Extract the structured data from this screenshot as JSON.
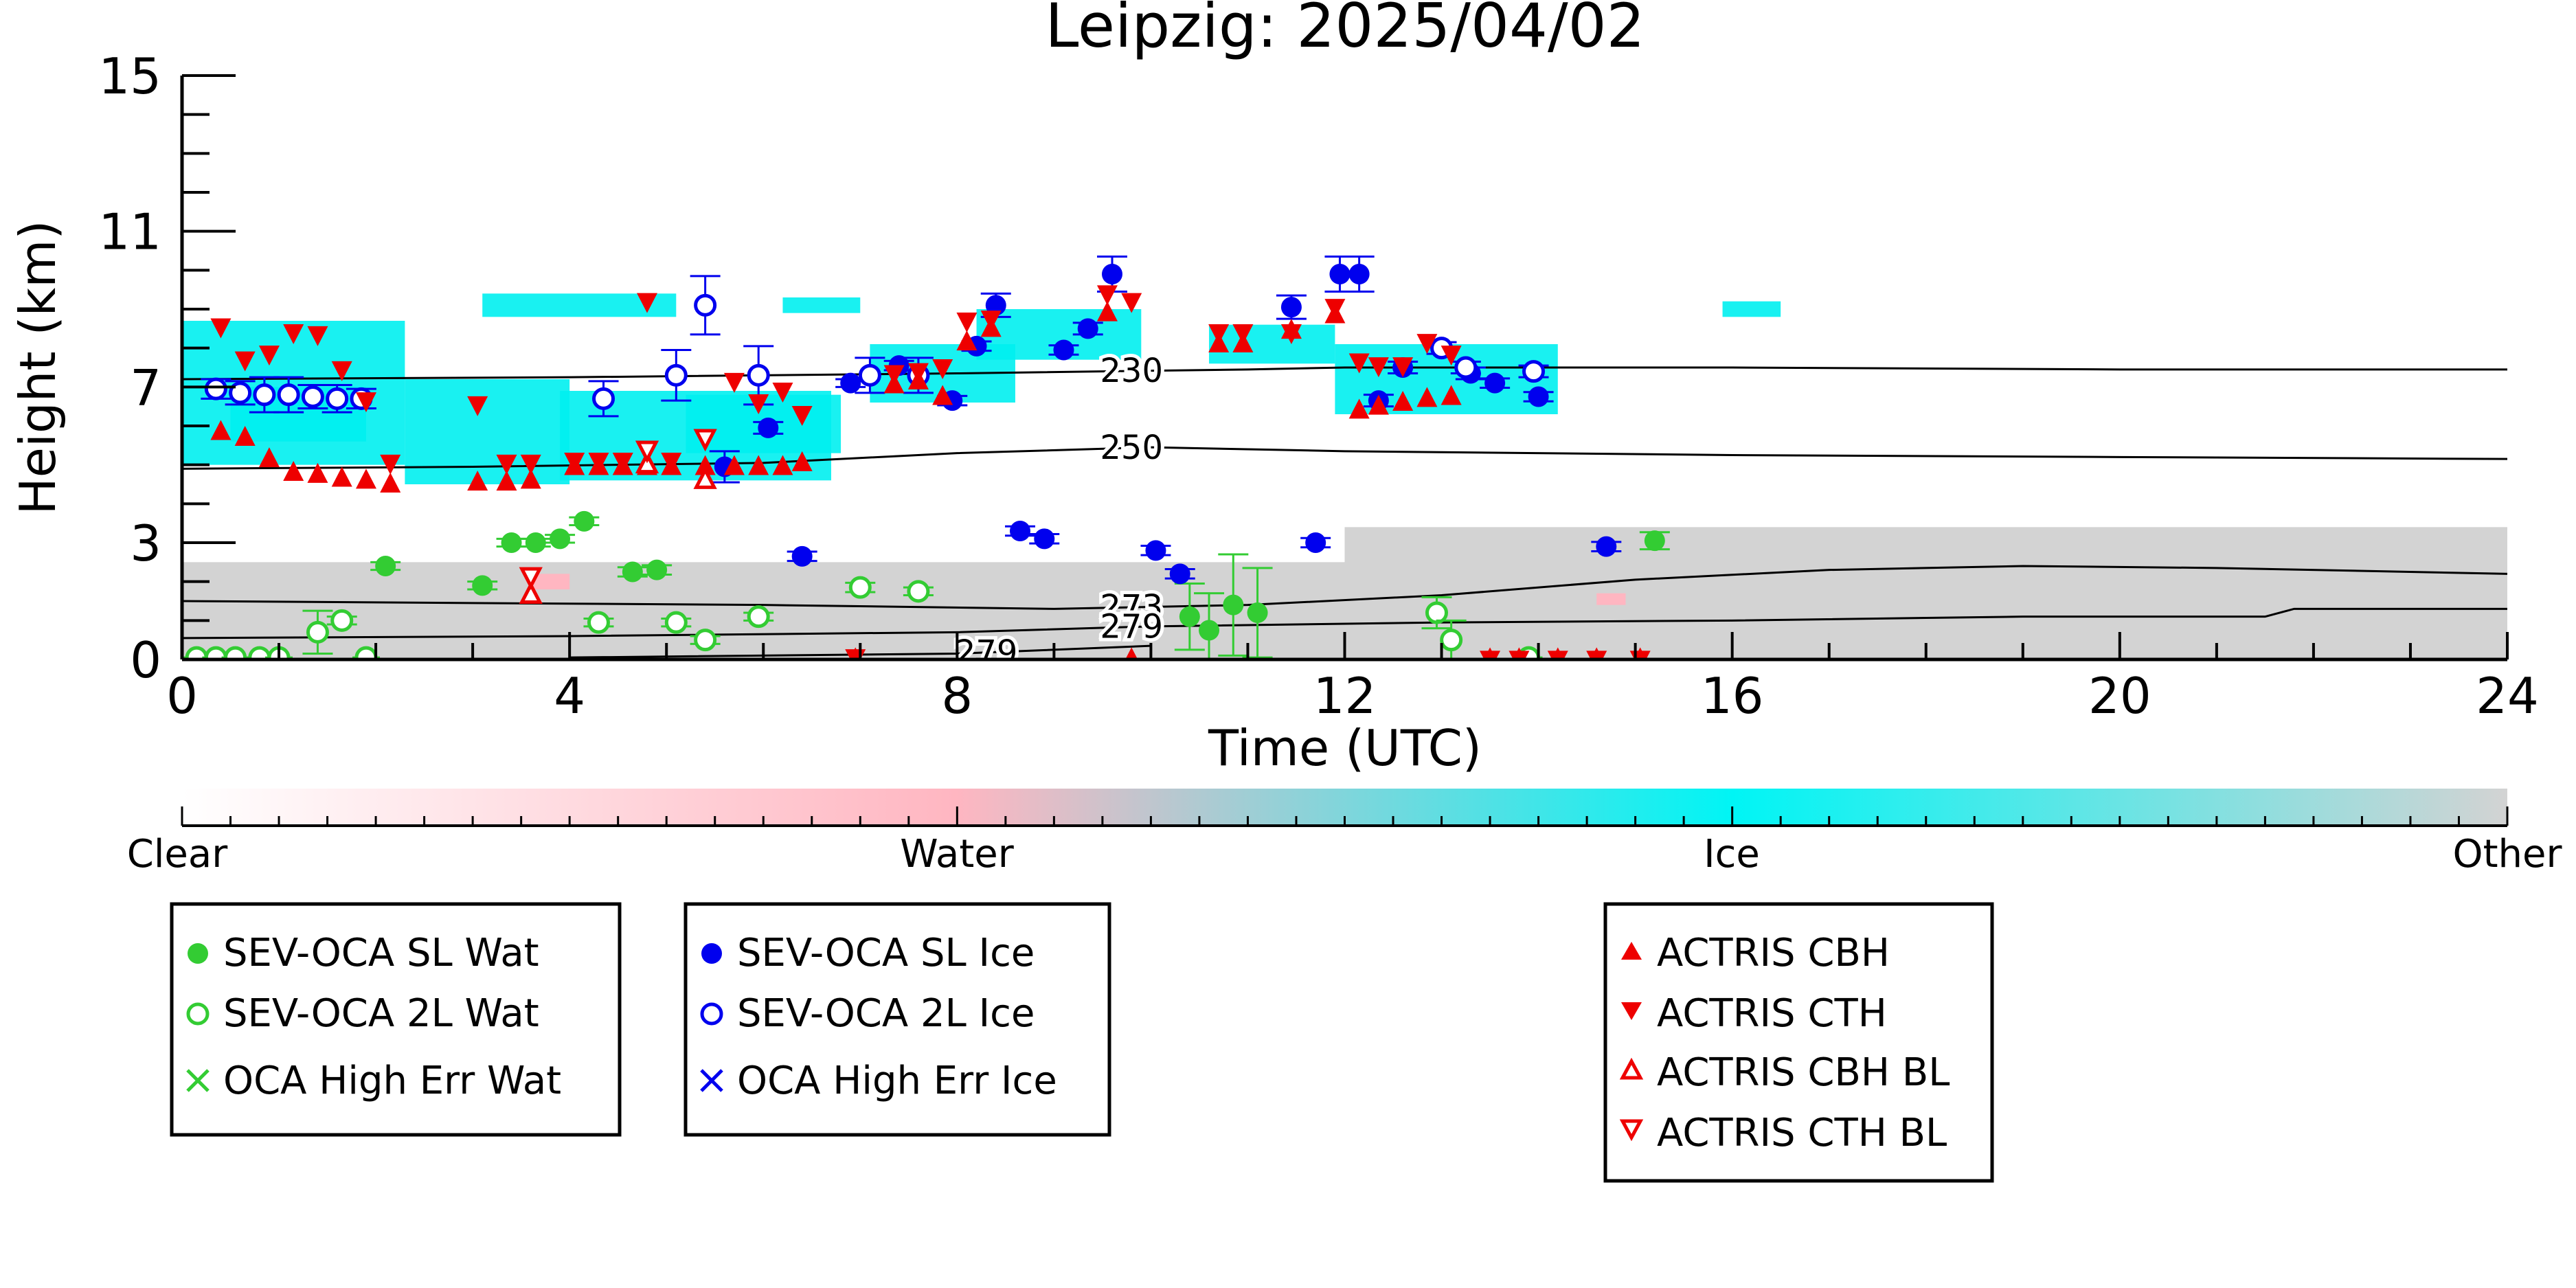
{
  "chart_data": {
    "type": "scatter",
    "title": "Leipzig: 2025/04/02",
    "xlabel": "Time (UTC)",
    "ylabel": "Height (km)",
    "xlim": [
      0,
      24
    ],
    "ylim": [
      0,
      15
    ],
    "xticks": [
      0,
      4,
      8,
      12,
      16,
      20,
      24
    ],
    "yticks": [
      0,
      3,
      7,
      11,
      15
    ],
    "grid": false,
    "colors": {
      "sl_wat": "#33cc33",
      "twol_wat": "#33cc33",
      "sl_ice": "#0000ee",
      "twol_ice": "#0000ee",
      "actris": "#ee0000",
      "ice_mask": "#00f0f0",
      "water_mask": "#ffb6c1",
      "other_mask": "#d3d3d3"
    },
    "colorbar": {
      "labels": [
        "Clear",
        "Water",
        "Ice",
        "Other"
      ],
      "stops": [
        "#ffffff",
        "#ffb6c1",
        "#00f5f5",
        "#d3d3d3"
      ]
    },
    "contours": [
      {
        "label": "230",
        "points": [
          [
            0,
            7.2
          ],
          [
            4,
            7.25
          ],
          [
            8,
            7.35
          ],
          [
            11,
            7.45
          ],
          [
            12,
            7.5
          ],
          [
            16,
            7.5
          ],
          [
            20,
            7.45
          ],
          [
            24,
            7.45
          ]
        ]
      },
      {
        "label": "250",
        "points": [
          [
            0,
            4.9
          ],
          [
            3,
            4.95
          ],
          [
            6,
            5.05
          ],
          [
            8,
            5.3
          ],
          [
            10,
            5.45
          ],
          [
            12,
            5.35
          ],
          [
            16,
            5.25
          ],
          [
            20,
            5.2
          ],
          [
            24,
            5.15
          ]
        ]
      },
      {
        "label": "273",
        "points": [
          [
            0,
            1.5
          ],
          [
            3,
            1.45
          ],
          [
            6,
            1.4
          ],
          [
            9,
            1.3
          ],
          [
            11,
            1.4
          ],
          [
            13,
            1.65
          ],
          [
            15,
            2.05
          ],
          [
            17,
            2.3
          ],
          [
            19,
            2.4
          ],
          [
            21,
            2.35
          ],
          [
            24,
            2.2
          ]
        ]
      },
      {
        "label": "279",
        "points": [
          [
            0,
            0.55
          ],
          [
            4,
            0.6
          ],
          [
            8,
            0.7
          ],
          [
            10,
            0.85
          ],
          [
            13,
            0.95
          ],
          [
            16,
            1.0
          ],
          [
            19,
            1.1
          ],
          [
            21.5,
            1.1
          ],
          [
            21.8,
            1.3
          ],
          [
            24,
            1.3
          ]
        ]
      },
      {
        "label": "279",
        "points": [
          [
            4,
            0.05
          ],
          [
            8,
            0.15
          ],
          [
            10,
            0.35
          ]
        ]
      }
    ],
    "masks": {
      "ice": [
        {
          "x": [
            0,
            2.3
          ],
          "y": [
            5.0,
            8.7
          ]
        },
        {
          "x": [
            0.5,
            1.9
          ],
          "y": [
            5.6,
            7.0
          ]
        },
        {
          "x": [
            2.3,
            4.0
          ],
          "y": [
            4.5,
            7.2
          ]
        },
        {
          "x": [
            3.9,
            6.7
          ],
          "y": [
            4.6,
            6.9
          ]
        },
        {
          "x": [
            5.2,
            6.8
          ],
          "y": [
            5.3,
            6.8
          ]
        },
        {
          "x": [
            7.1,
            8.6
          ],
          "y": [
            6.6,
            8.1
          ]
        },
        {
          "x": [
            8.2,
            9.9
          ],
          "y": [
            7.7,
            9.0
          ]
        },
        {
          "x": [
            10.6,
            11.9
          ],
          "y": [
            7.6,
            8.6
          ]
        },
        {
          "x": [
            11.9,
            14.2
          ],
          "y": [
            6.3,
            8.1
          ]
        },
        {
          "x": [
            3.1,
            5.1
          ],
          "y": [
            8.8,
            9.4
          ]
        },
        {
          "x": [
            6.2,
            7.0
          ],
          "y": [
            8.9,
            9.3
          ]
        },
        {
          "x": [
            15.9,
            16.5
          ],
          "y": [
            8.8,
            9.2
          ]
        }
      ],
      "water": [
        {
          "x": [
            3.6,
            4.0
          ],
          "y": [
            1.8,
            2.2
          ]
        },
        {
          "x": [
            14.6,
            14.9
          ],
          "y": [
            1.4,
            1.7
          ]
        }
      ],
      "other": [
        {
          "x": [
            0,
            24
          ],
          "y": [
            0,
            1.5
          ]
        },
        {
          "x": [
            0,
            12
          ],
          "y": [
            1.5,
            2.5
          ]
        },
        {
          "x": [
            12,
            24
          ],
          "y": [
            1.5,
            3.4
          ]
        }
      ]
    },
    "series": [
      {
        "name": "SEV-OCA SL Wat",
        "marker": "filled-circle",
        "points": [
          [
            2.1,
            2.4
          ],
          [
            3.1,
            1.9
          ],
          [
            3.4,
            3.0
          ],
          [
            3.65,
            3.0
          ],
          [
            3.9,
            3.1
          ],
          [
            4.15,
            3.55
          ],
          [
            4.65,
            2.25
          ],
          [
            4.9,
            2.3
          ],
          [
            10.4,
            1.1
          ],
          [
            10.6,
            0.75
          ],
          [
            10.85,
            1.4
          ],
          [
            11.1,
            1.2
          ],
          [
            15.2,
            3.05
          ]
        ],
        "errors": [
          0.1,
          0.1,
          0.1,
          0.1,
          0.1,
          0.1,
          0.12,
          0.12,
          0.85,
          0.95,
          1.3,
          1.15,
          0.22
        ]
      },
      {
        "name": "SEV-OCA 2L Wat",
        "marker": "open-circle",
        "points": [
          [
            0.15,
            0.05
          ],
          [
            0.35,
            0.05
          ],
          [
            0.55,
            0.05
          ],
          [
            0.8,
            0.05
          ],
          [
            1.0,
            0.05
          ],
          [
            1.4,
            0.7
          ],
          [
            1.65,
            1.0
          ],
          [
            1.9,
            0.05
          ],
          [
            4.3,
            0.95
          ],
          [
            5.1,
            0.95
          ],
          [
            5.4,
            0.5
          ],
          [
            5.95,
            1.1
          ],
          [
            7.0,
            1.85
          ],
          [
            7.6,
            1.75
          ],
          [
            12.95,
            1.2
          ],
          [
            13.1,
            0.5
          ],
          [
            13.9,
            0.05
          ]
        ],
        "errors": [
          0,
          0,
          0,
          0,
          0,
          0.55,
          0.1,
          0,
          0.1,
          0.1,
          0.1,
          0.1,
          0.12,
          0.1,
          0.4,
          0.5,
          0
        ]
      },
      {
        "name": "OCA High Err Wat",
        "marker": "x",
        "points": []
      },
      {
        "name": "SEV-OCA SL Ice",
        "marker": "filled-circle",
        "points": [
          [
            5.6,
            4.95
          ],
          [
            6.05,
            5.95
          ],
          [
            6.4,
            2.65
          ],
          [
            6.9,
            7.1
          ],
          [
            7.4,
            7.55
          ],
          [
            7.95,
            6.65
          ],
          [
            8.2,
            8.05
          ],
          [
            8.4,
            9.1
          ],
          [
            8.65,
            3.3
          ],
          [
            8.9,
            3.1
          ],
          [
            9.1,
            7.95
          ],
          [
            9.35,
            8.5
          ],
          [
            9.6,
            9.9
          ],
          [
            10.05,
            2.8
          ],
          [
            10.3,
            2.2
          ],
          [
            11.45,
            9.05
          ],
          [
            11.7,
            3.0
          ],
          [
            11.95,
            9.9
          ],
          [
            12.15,
            9.9
          ],
          [
            12.35,
            6.65
          ],
          [
            12.6,
            7.5
          ],
          [
            13.3,
            7.35
          ],
          [
            13.55,
            7.1
          ],
          [
            14.0,
            6.75
          ],
          [
            14.7,
            2.9
          ]
        ],
        "errors": [
          0.4,
          0.15,
          0.12,
          0.1,
          0.12,
          0.12,
          0.12,
          0.3,
          0.12,
          0.12,
          0.12,
          0.15,
          0.45,
          0.12,
          0.12,
          0.3,
          0.12,
          0.45,
          0.45,
          0.15,
          0.15,
          0.15,
          0.12,
          0.12,
          0.12
        ]
      },
      {
        "name": "SEV-OCA 2L Ice",
        "marker": "open-circle",
        "points": [
          [
            0.35,
            6.95
          ],
          [
            0.6,
            6.85
          ],
          [
            0.85,
            6.8
          ],
          [
            1.1,
            6.8
          ],
          [
            1.35,
            6.75
          ],
          [
            1.6,
            6.7
          ],
          [
            1.85,
            6.7
          ],
          [
            4.35,
            6.7
          ],
          [
            5.1,
            7.3
          ],
          [
            5.4,
            9.1
          ],
          [
            5.95,
            7.3
          ],
          [
            7.1,
            7.3
          ],
          [
            7.6,
            7.3
          ],
          [
            13.0,
            8.0
          ],
          [
            13.25,
            7.5
          ],
          [
            13.95,
            7.4
          ]
        ],
        "errors": [
          0.25,
          0.3,
          0.45,
          0.45,
          0.3,
          0.35,
          0.25,
          0.45,
          0.65,
          0.75,
          0.75,
          0.45,
          0.45,
          0.15,
          0.15,
          0.15
        ]
      },
      {
        "name": "OCA High Err Ice",
        "marker": "x",
        "points": []
      },
      {
        "name": "ACTRIS CBH",
        "marker": "triangle-up",
        "points": [
          [
            0.4,
            5.85
          ],
          [
            0.65,
            5.7
          ],
          [
            0.9,
            5.15
          ],
          [
            1.15,
            4.8
          ],
          [
            1.4,
            4.75
          ],
          [
            1.65,
            4.65
          ],
          [
            1.9,
            4.6
          ],
          [
            2.15,
            4.5
          ],
          [
            3.05,
            4.55
          ],
          [
            3.35,
            4.55
          ],
          [
            3.6,
            4.6
          ],
          [
            4.05,
            4.95
          ],
          [
            4.3,
            4.95
          ],
          [
            4.55,
            4.95
          ],
          [
            4.8,
            4.95
          ],
          [
            5.05,
            4.95
          ],
          [
            5.4,
            4.95
          ],
          [
            5.7,
            4.95
          ],
          [
            5.95,
            4.95
          ],
          [
            6.2,
            4.95
          ],
          [
            6.4,
            5.05
          ],
          [
            6.95,
            0.01
          ],
          [
            7.35,
            7.05
          ],
          [
            7.6,
            7.15
          ],
          [
            7.85,
            6.75
          ],
          [
            8.1,
            8.15
          ],
          [
            8.35,
            8.5
          ],
          [
            9.55,
            8.9
          ],
          [
            9.8,
            0.01
          ],
          [
            10.7,
            8.1
          ],
          [
            10.95,
            8.1
          ],
          [
            11.45,
            8.45
          ],
          [
            11.9,
            8.85
          ],
          [
            12.15,
            6.4
          ],
          [
            12.35,
            6.5
          ],
          [
            12.6,
            6.6
          ],
          [
            12.85,
            6.7
          ],
          [
            13.1,
            6.75
          ],
          [
            13.5,
            0.01
          ],
          [
            13.8,
            0.01
          ],
          [
            14.2,
            0.01
          ],
          [
            14.6,
            0.01
          ],
          [
            15.05,
            0.01
          ]
        ]
      },
      {
        "name": "ACTRIS CTH",
        "marker": "triangle-down",
        "points": [
          [
            0.4,
            8.55
          ],
          [
            0.65,
            7.7
          ],
          [
            0.9,
            7.85
          ],
          [
            1.15,
            8.4
          ],
          [
            1.4,
            8.35
          ],
          [
            1.65,
            7.45
          ],
          [
            1.9,
            6.65
          ],
          [
            2.15,
            5.05
          ],
          [
            3.05,
            6.55
          ],
          [
            3.35,
            5.05
          ],
          [
            3.6,
            5.05
          ],
          [
            4.05,
            5.1
          ],
          [
            4.3,
            5.1
          ],
          [
            4.55,
            5.1
          ],
          [
            4.8,
            9.2
          ],
          [
            5.05,
            5.1
          ],
          [
            5.7,
            7.15
          ],
          [
            5.95,
            6.6
          ],
          [
            6.2,
            6.9
          ],
          [
            6.4,
            6.3
          ],
          [
            6.95,
            0.05
          ],
          [
            7.35,
            7.35
          ],
          [
            7.6,
            7.4
          ],
          [
            7.85,
            7.5
          ],
          [
            8.1,
            8.7
          ],
          [
            8.35,
            8.75
          ],
          [
            9.55,
            9.4
          ],
          [
            9.8,
            9.2
          ],
          [
            10.7,
            8.4
          ],
          [
            10.95,
            8.4
          ],
          [
            11.45,
            8.4
          ],
          [
            11.9,
            9.05
          ],
          [
            12.15,
            7.65
          ],
          [
            12.35,
            7.55
          ],
          [
            12.6,
            7.55
          ],
          [
            12.85,
            8.15
          ],
          [
            13.1,
            7.85
          ],
          [
            13.5,
            0.01
          ],
          [
            13.8,
            0.01
          ],
          [
            14.2,
            0.01
          ],
          [
            14.6,
            0.01
          ],
          [
            15.05,
            0.01
          ]
        ]
      },
      {
        "name": "ACTRIS CBH BL",
        "marker": "open-triangle-up",
        "points": [
          [
            3.6,
            1.65
          ],
          [
            4.8,
            5.0
          ],
          [
            5.4,
            4.6
          ]
        ]
      },
      {
        "name": "ACTRIS CTH BL",
        "marker": "open-triangle-down",
        "points": [
          [
            3.6,
            2.15
          ],
          [
            4.8,
            5.4
          ],
          [
            5.4,
            5.7
          ]
        ]
      }
    ],
    "legend": {
      "placement": "below",
      "groups": [
        [
          "SEV-OCA SL Wat",
          "SEV-OCA 2L Wat",
          "OCA High Err Wat"
        ],
        [
          "SEV-OCA SL Ice",
          "SEV-OCA 2L Ice",
          "OCA High Err Ice"
        ],
        [
          "ACTRIS CBH",
          "ACTRIS CTH",
          "ACTRIS CBH BL",
          "ACTRIS CTH BL"
        ]
      ]
    }
  }
}
